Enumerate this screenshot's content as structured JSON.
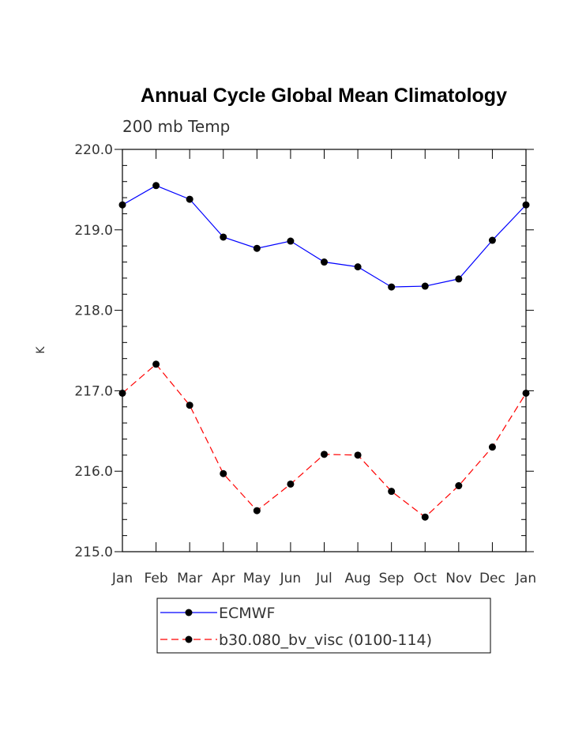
{
  "chart_data": {
    "type": "line",
    "title": "Annual Cycle Global Mean Climatology",
    "subtitle": "200 mb Temp",
    "ylabel": "K",
    "xlabel": "",
    "categories": [
      "Jan",
      "Feb",
      "Mar",
      "Apr",
      "May",
      "Jun",
      "Jul",
      "Aug",
      "Sep",
      "Oct",
      "Nov",
      "Dec",
      "Jan"
    ],
    "ylim": [
      215.0,
      220.0
    ],
    "yticks": [
      "215.0",
      "216.0",
      "217.0",
      "218.0",
      "219.0",
      "220.0"
    ],
    "grid": false,
    "legend_position": "bottom",
    "series": [
      {
        "name": "ECMWF",
        "color": "#0000ff",
        "dash": "solid",
        "marker": "circle",
        "values": [
          219.31,
          219.55,
          219.38,
          218.91,
          218.77,
          218.86,
          218.6,
          218.54,
          218.29,
          218.3,
          218.39,
          218.87,
          219.31
        ]
      },
      {
        "name": "b30.080_bv_visc (0100-114)",
        "color": "#ff0000",
        "dash": "dashed",
        "marker": "circle",
        "values": [
          216.97,
          217.33,
          216.82,
          215.97,
          215.51,
          215.84,
          216.21,
          216.2,
          215.75,
          215.43,
          215.82,
          216.3,
          216.97
        ]
      }
    ]
  }
}
